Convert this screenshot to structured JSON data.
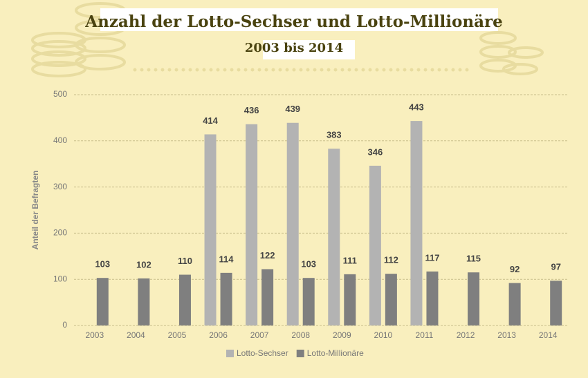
{
  "chart_data": {
    "type": "bar",
    "title": "Anzahl der Lotto-Sechser und Lotto-Millionäre",
    "subtitle": "2003 bis 2014",
    "y_label": "Anteil der Befragten",
    "categories": [
      "2003",
      "2004",
      "2005",
      "2006",
      "2007",
      "2008",
      "2009",
      "2010",
      "2011",
      "2012",
      "2013",
      "2014"
    ],
    "series": [
      {
        "name": "Lotto-Sechser",
        "color": "#b3b3b3",
        "values": [
          null,
          null,
          null,
          414,
          436,
          439,
          383,
          346,
          443,
          null,
          null,
          null
        ]
      },
      {
        "name": "Lotto-Millionäre",
        "color": "#7f7f7f",
        "values": [
          103,
          102,
          110,
          114,
          122,
          103,
          111,
          112,
          117,
          115,
          92,
          97
        ]
      }
    ],
    "ylim": [
      0,
      500
    ],
    "yticks": [
      0,
      100,
      200,
      300,
      400,
      500
    ],
    "grid": true,
    "legend": "bottom"
  }
}
